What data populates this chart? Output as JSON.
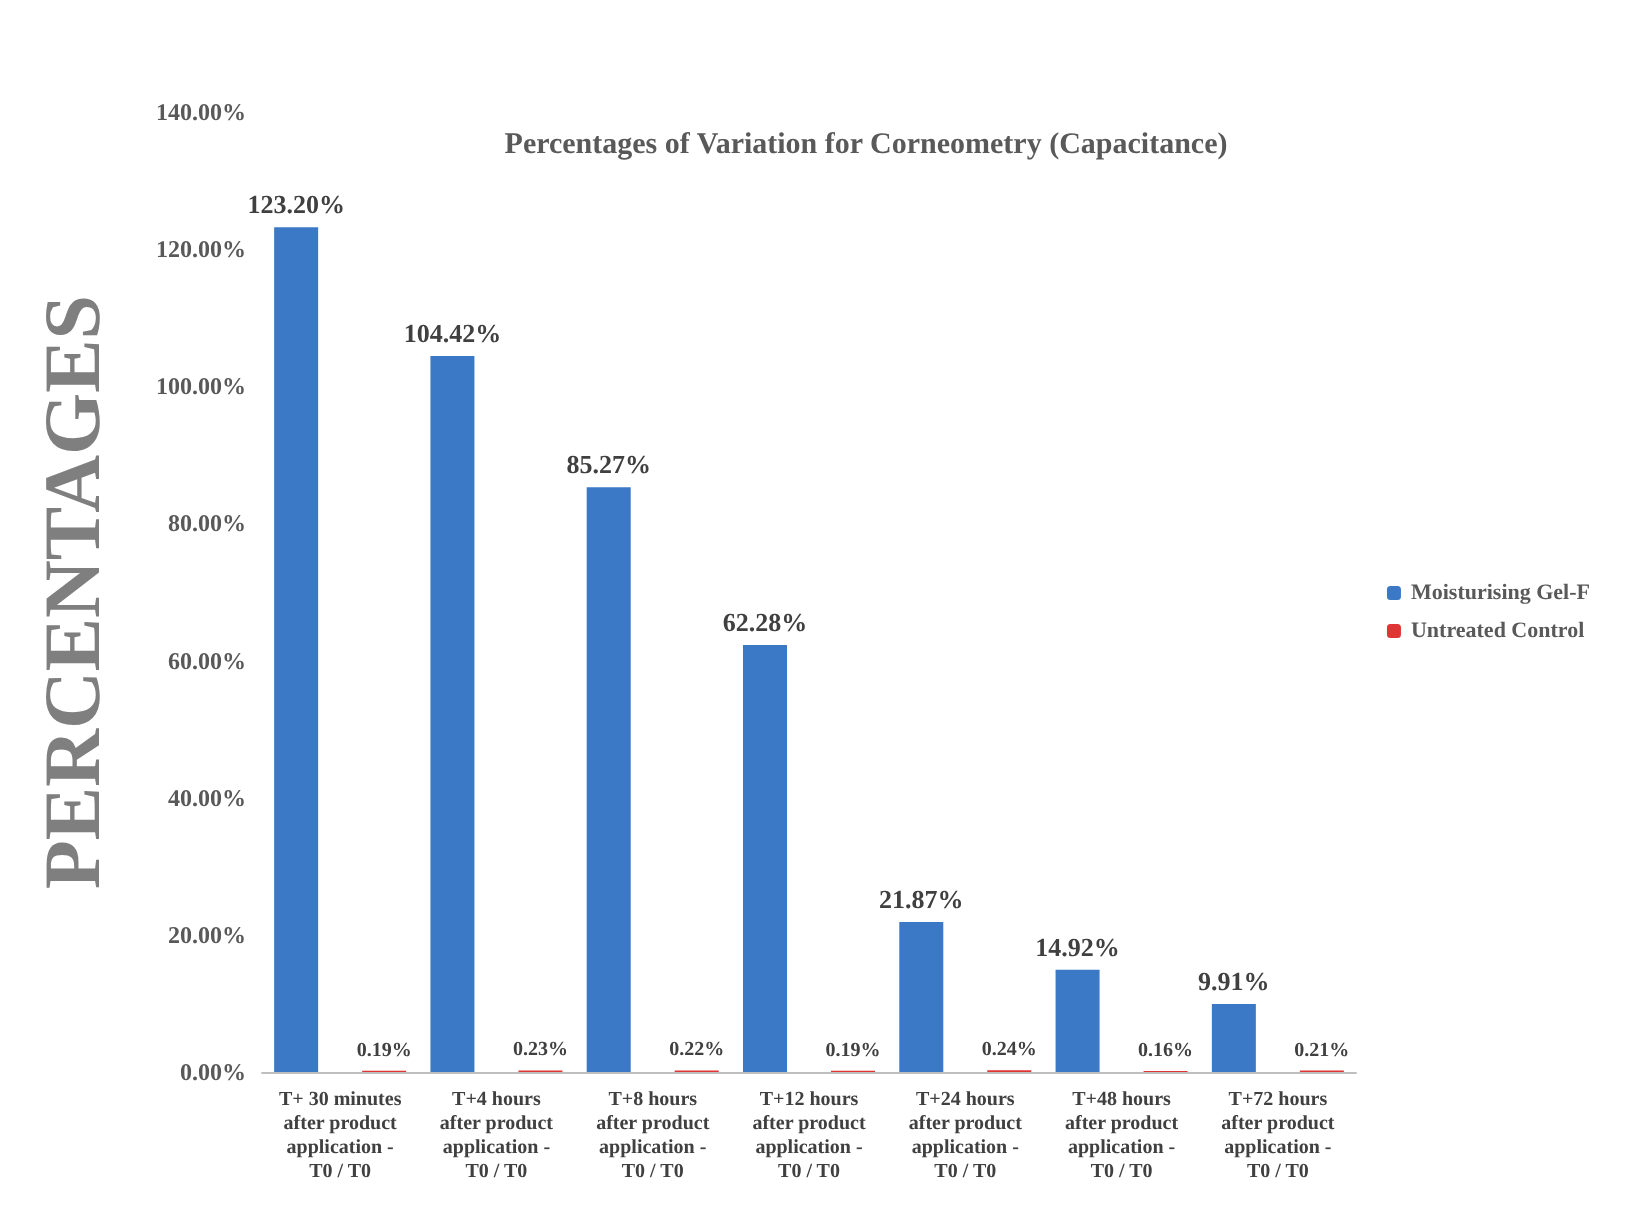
{
  "chart_data": {
    "type": "bar",
    "title": "Percentages of Variation for Corneometry (Capacitance)",
    "ylabel": "PERCENTAGES",
    "categories": [
      "T+ 30 minutes\nafter product\napplication -\nT0 / T0",
      "T+4 hours\nafter product\napplication -\nT0 / T0",
      "T+8 hours\nafter product\napplication -\nT0 / T0",
      "T+12 hours\nafter product\napplication -\nT0 / T0",
      "T+24 hours\nafter product\napplication -\nT0 / T0",
      "T+48 hours\nafter product\napplication -\nT0 / T0",
      "T+72 hours\nafter product\napplication -\nT0 / T0"
    ],
    "series": [
      {
        "name": "Moisturising Gel-F",
        "color": "#3b78c6",
        "values": [
          123.2,
          104.42,
          85.27,
          62.28,
          21.87,
          14.92,
          9.91
        ],
        "value_labels": [
          "123.20%",
          "104.42%",
          "85.27%",
          "62.28%",
          "21.87%",
          "14.92%",
          "9.91%"
        ]
      },
      {
        "name": "Untreated Control",
        "color": "#e03535",
        "values": [
          0.19,
          0.23,
          0.22,
          0.19,
          0.24,
          0.16,
          0.21
        ],
        "value_labels": [
          "0.19%",
          "0.23%",
          "0.22%",
          "0.19%",
          "0.24%",
          "0.16%",
          "0.21%"
        ]
      }
    ],
    "ylim": [
      0,
      140
    ],
    "yticks": [
      {
        "value": 0,
        "label": "0.00%"
      },
      {
        "value": 20,
        "label": "20.00%"
      },
      {
        "value": 40,
        "label": "40.00%"
      },
      {
        "value": 60,
        "label": "60.00%"
      },
      {
        "value": 80,
        "label": "80.00%"
      },
      {
        "value": 100,
        "label": "100.00%"
      },
      {
        "value": 120,
        "label": "120.00%"
      },
      {
        "value": 140,
        "label": "140.00%"
      }
    ],
    "grid": false,
    "legend": "right"
  }
}
